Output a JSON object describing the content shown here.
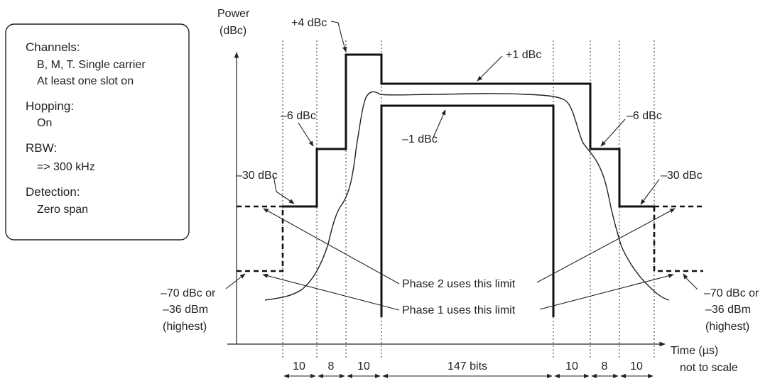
{
  "info_box": {
    "channels_title": "Channels:",
    "channels_line1": "B, M, T. Single carrier",
    "channels_line2": "At least one slot on",
    "hopping_title": "Hopping:",
    "hopping_value": "On",
    "rbw_title": "RBW:",
    "rbw_value": "=> 300 kHz",
    "detection_title": "Detection:",
    "detection_value": "Zero span"
  },
  "axes": {
    "y_label_line1": "Power",
    "y_label_line2": "(dBc)",
    "x_label_line1": "Time (µs)",
    "x_label_line2": "not to scale"
  },
  "levels": {
    "plus4": "+4 dBc",
    "plus1": "+1 dBc",
    "minus1": "–1 dBc",
    "minus6_left": "–6 dBc",
    "minus6_right": "–6 dBc",
    "minus30_left": "–30 dBc",
    "minus30_right": "–30 dBc",
    "minus70_left_line1": "–70 dBc or",
    "minus70_left_line2": "–36 dBm",
    "minus70_left_line3": "(highest)",
    "minus70_right_line1": "–70 dBc or",
    "minus70_right_line2": "–36 dBm",
    "minus70_right_line3": "(highest)"
  },
  "annotations": {
    "phase2": "Phase 2 uses this limit",
    "phase1": "Phase 1 uses this limit"
  },
  "durations": [
    "10",
    "8",
    "10",
    "147 bits",
    "10",
    "8",
    "10"
  ]
}
